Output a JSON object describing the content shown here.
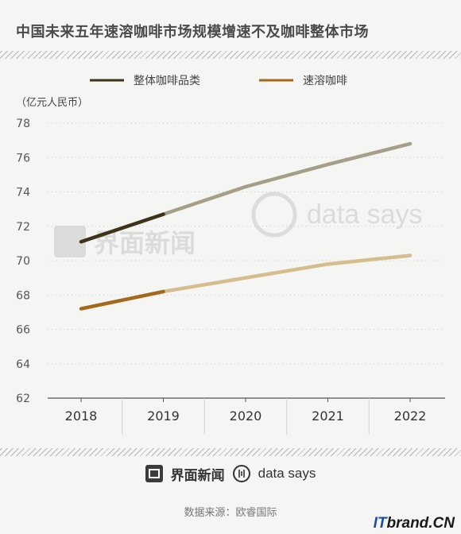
{
  "title": "中国未来五年速溶咖啡市场规模增速不及咖啡整体市场",
  "chart_data": {
    "type": "line",
    "ylabel": "（亿元人民币）",
    "ylim": [
      62,
      78
    ],
    "yticks": [
      62,
      64,
      66,
      68,
      70,
      72,
      74,
      76,
      78
    ],
    "categories": [
      "2018",
      "2019",
      "2020",
      "2021",
      "2022"
    ],
    "series": [
      {
        "name": "整体咖啡品类",
        "values": [
          71.1,
          72.7,
          74.3,
          75.6,
          76.8
        ],
        "color": "#3d3318",
        "forecast_color": "#a59f89",
        "actual_until_index": 1
      },
      {
        "name": "速溶咖啡",
        "values": [
          67.2,
          68.2,
          69.0,
          69.8,
          70.3
        ],
        "color": "#a3681c",
        "forecast_color": "#d6bd8d",
        "actual_until_index": 1
      }
    ],
    "legend_position": "top",
    "grid": false
  },
  "watermarks": {
    "jiemian": "界面新闻",
    "datasays": "data says"
  },
  "footer": {
    "brand_cn": "界面新闻",
    "brand_en": "data says",
    "source": "数据来源：欧睿国际",
    "corner_it": "IT",
    "corner_rest": "brand.CN"
  }
}
